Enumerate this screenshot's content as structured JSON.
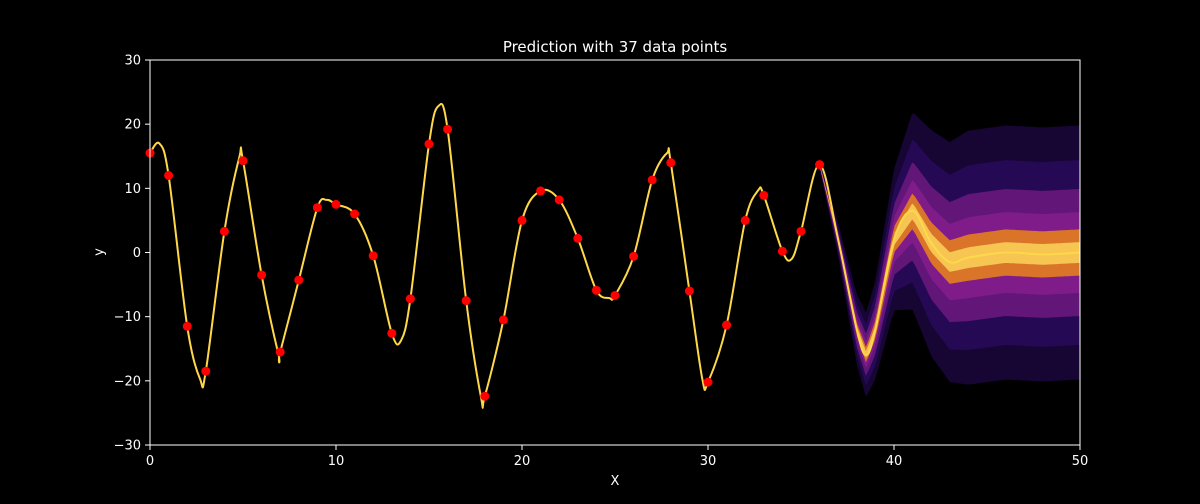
{
  "chart_data": {
    "type": "line",
    "title": "Prediction with 37 data points",
    "xlabel": "X",
    "ylabel": "y",
    "xlim": [
      0,
      50
    ],
    "ylim": [
      -30,
      30
    ],
    "xticks": [
      0,
      10,
      20,
      30,
      40,
      50
    ],
    "yticks": [
      -30,
      -20,
      -10,
      0,
      10,
      20,
      30
    ],
    "grid": false,
    "legend": "none",
    "background": "#000000",
    "colors": {
      "observations": "#ff0000",
      "mean_curve": "#ffd84a",
      "sample_band_outer": "#2a0a5e",
      "sample_band_mid": "#8a1f8f",
      "sample_band_inner": "#ff9a00",
      "axes": "#ffffff"
    },
    "observations": {
      "x": [
        0,
        1,
        2,
        3,
        4,
        5,
        6,
        7,
        8,
        9,
        10,
        11,
        12,
        13,
        14,
        15,
        16,
        17,
        18,
        19,
        20,
        21,
        22,
        23,
        24,
        25,
        26,
        27,
        28,
        29,
        30,
        31,
        32,
        33,
        34,
        35,
        36
      ],
      "y": [
        15.5,
        12.0,
        -11.5,
        -18.5,
        3.3,
        14.3,
        -3.5,
        -15.5,
        -4.3,
        7.0,
        7.5,
        6.0,
        -0.5,
        -12.6,
        -7.2,
        16.9,
        19.2,
        -7.5,
        -22.4,
        -10.5,
        5.0,
        9.6,
        8.2,
        2.2,
        -5.9,
        -6.7,
        -0.6,
        11.3,
        14.0,
        -6.0,
        -20.2,
        -11.3,
        5.0,
        8.9,
        0.2,
        3.3,
        13.7
      ]
    },
    "mean_curve": {
      "x": [
        0,
        0.5,
        1,
        2,
        2.7,
        3,
        4,
        4.8,
        5,
        6,
        6.9,
        7,
        8,
        9,
        9.5,
        10,
        11,
        12,
        13,
        13.5,
        14,
        15,
        15.5,
        16,
        17,
        17.8,
        18,
        19,
        20,
        21,
        22,
        23,
        24,
        24.7,
        25,
        26,
        27,
        27.8,
        28,
        29,
        29.7,
        30,
        31,
        32,
        32.7,
        33,
        34,
        34.5,
        35,
        36,
        37,
        38,
        38.5,
        39,
        40,
        41,
        42,
        43,
        44,
        46,
        48,
        50
      ],
      "y": [
        15.5,
        17.0,
        12.0,
        -11.5,
        -19.8,
        -18.5,
        3.3,
        14.8,
        14.3,
        -3.5,
        -15.8,
        -15.5,
        -4.3,
        7.0,
        8.2,
        7.5,
        6.0,
        -0.5,
        -12.6,
        -13.7,
        -7.2,
        16.9,
        22.8,
        19.2,
        -7.5,
        -22.6,
        -22.4,
        -10.5,
        5.0,
        9.6,
        8.2,
        2.2,
        -5.9,
        -7.1,
        -6.7,
        -0.6,
        11.3,
        15.5,
        14.0,
        -6.0,
        -19.8,
        -20.2,
        -11.3,
        5.0,
        9.7,
        8.9,
        0.2,
        -1.0,
        3.3,
        13.7,
        2.0,
        -12.0,
        -16.0,
        -12.0,
        2.0,
        6.5,
        1.5,
        -1.5,
        -0.8,
        0.0,
        -0.3,
        0.0
      ]
    },
    "sample_spread": {
      "x": [
        36,
        37,
        38,
        39,
        40,
        41,
        42,
        43,
        44,
        46,
        48,
        50
      ],
      "std": [
        0.3,
        1.2,
        2.5,
        3.5,
        5.0,
        7.0,
        8.0,
        8.5,
        9.0,
        9.0,
        9.0,
        9.0
      ]
    }
  }
}
